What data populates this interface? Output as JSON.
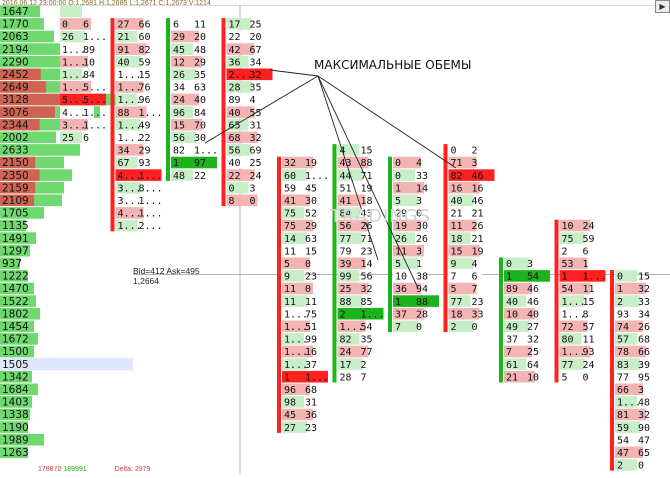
{
  "header": {
    "datetime": "2016.06.12 23:00:00",
    "open": "O:1,2681",
    "high": "H:1,2685",
    "low": "L:1,2671",
    "close": "C:1,2673",
    "volume": "V:1214"
  },
  "annotation": "МАКСИМАЛЬНЫЕ ОБЕМЫ",
  "watermark": "TRADINGS",
  "crosshair_info": {
    "bid_ask": "Bid=412 Ask=495",
    "price": "1,2664"
  },
  "bottom_values": {
    "left": "178870",
    "mid": "189991",
    "right": "Delta: 2979"
  },
  "colors": {
    "profile_green": "#6fd86f",
    "profile_red": "#e05050",
    "max_red": "#ff2020",
    "max_green": "#1db31d",
    "light_green": "#c8eec8",
    "light_red": "#f3b4b4"
  },
  "volume_profile": [
    {
      "label": "1647",
      "level": 0.2,
      "tint": "g"
    },
    {
      "label": "1770",
      "level": 0.22,
      "tint": "g"
    },
    {
      "label": "2063",
      "level": 0.27,
      "tint": "g"
    },
    {
      "label": "2194",
      "level": 0.3,
      "tint": "g"
    },
    {
      "label": "2290",
      "level": 0.32,
      "tint": "g"
    },
    {
      "label": "2452",
      "level": 0.37,
      "tint": "m"
    },
    {
      "label": "2649",
      "level": 0.42,
      "tint": "m"
    },
    {
      "label": "3128",
      "level": 0.6,
      "tint": "m"
    },
    {
      "label": "3076",
      "level": 0.5,
      "tint": "m"
    },
    {
      "label": "2344",
      "level": 0.36,
      "tint": "m"
    },
    {
      "label": "2002",
      "level": 0.28,
      "tint": "g"
    },
    {
      "label": "2633",
      "level": 0.4,
      "tint": "g"
    },
    {
      "label": "2150",
      "level": 0.32,
      "tint": "m"
    },
    {
      "label": "2350",
      "level": 0.36,
      "tint": "m"
    },
    {
      "label": "2159",
      "level": 0.32,
      "tint": "m"
    },
    {
      "label": "2109",
      "level": 0.31,
      "tint": "m"
    },
    {
      "label": "1705",
      "level": 0.22,
      "tint": "g"
    },
    {
      "label": "1135",
      "level": 0.13,
      "tint": "g"
    },
    {
      "label": "1491",
      "level": 0.18,
      "tint": "g"
    },
    {
      "label": "1297",
      "level": 0.15,
      "tint": "g"
    },
    {
      "label": "937",
      "level": 0.1,
      "tint": "g"
    },
    {
      "label": "1222",
      "level": 0.14,
      "tint": "g"
    },
    {
      "label": "1470",
      "level": 0.17,
      "tint": "g"
    },
    {
      "label": "1522",
      "level": 0.18,
      "tint": "g"
    },
    {
      "label": "1802",
      "level": 0.2,
      "tint": "g"
    },
    {
      "label": "1454",
      "level": 0.17,
      "tint": "g"
    },
    {
      "label": "1672",
      "level": 0.19,
      "tint": "g"
    },
    {
      "label": "1500",
      "level": 0.17,
      "tint": "g"
    },
    {
      "label": "1505",
      "level": 0.17,
      "tint": "b"
    },
    {
      "label": "1342",
      "level": 0.16,
      "tint": "g"
    },
    {
      "label": "1684",
      "level": 0.19,
      "tint": "g"
    },
    {
      "label": "1403",
      "level": 0.16,
      "tint": "g"
    },
    {
      "label": "1338",
      "level": 0.15,
      "tint": "g"
    },
    {
      "label": "1190",
      "level": 0.14,
      "tint": "g"
    },
    {
      "label": "1989",
      "level": 0.22,
      "tint": "g"
    },
    {
      "label": "1263",
      "level": 0.14,
      "tint": "g"
    }
  ],
  "clusters": [
    {
      "start_row": 0,
      "candle": "n",
      "rows": [
        [
          "",
          ""
        ],
        [
          "0",
          "6"
        ],
        [
          "26",
          "1..."
        ],
        [
          "1...",
          "89"
        ],
        [
          "1...",
          "10"
        ],
        [
          "1...",
          "84"
        ],
        [
          "1...",
          "5..."
        ],
        [
          "5...",
          "5..."
        ],
        [
          "4...",
          "1..."
        ],
        [
          "3...",
          "1..."
        ],
        [
          "25",
          "6"
        ]
      ],
      "max_row": 7
    },
    {
      "start_row": 1,
      "candle": "bear",
      "rows": [
        [
          "27",
          "66"
        ],
        [
          "21",
          "60"
        ],
        [
          "91",
          "82"
        ],
        [
          "40",
          "59"
        ],
        [
          "1...",
          "15"
        ],
        [
          "1...",
          "76"
        ],
        [
          "1...",
          "96"
        ],
        [
          "88",
          "1..."
        ],
        [
          "1...",
          "49"
        ],
        [
          "1...",
          "22"
        ],
        [
          "34",
          "29"
        ],
        [
          "67",
          "93"
        ],
        [
          "4...",
          "1..."
        ],
        [
          "3...",
          "8..."
        ],
        [
          "3...",
          "1..."
        ],
        [
          "4...",
          "1..."
        ],
        [
          "1...",
          "2..."
        ]
      ],
      "max_row": 12
    },
    {
      "start_row": 1,
      "candle": "bull",
      "rows": [
        [
          "6",
          "11"
        ],
        [
          "29",
          "20"
        ],
        [
          "45",
          "48"
        ],
        [
          "12",
          "29"
        ],
        [
          "26",
          "35"
        ],
        [
          "34",
          "63"
        ],
        [
          "24",
          "40"
        ],
        [
          "96",
          "84"
        ],
        [
          "15",
          "70"
        ],
        [
          "56",
          "30"
        ],
        [
          "82",
          "1..."
        ],
        [
          "1",
          "97"
        ],
        [
          "48",
          "22"
        ]
      ],
      "max_row": 11
    },
    {
      "start_row": 1,
      "candle": "bear",
      "rows": [
        [
          "17",
          "25"
        ],
        [
          "22",
          "20"
        ],
        [
          "42",
          "67"
        ],
        [
          "36",
          "34"
        ],
        [
          "2...",
          "32"
        ],
        [
          "28",
          "35"
        ],
        [
          "89",
          "4"
        ],
        [
          "40",
          "55"
        ],
        [
          "65",
          "31"
        ],
        [
          "68",
          "32"
        ],
        [
          "56",
          "69"
        ],
        [
          "40",
          "25"
        ],
        [
          "22",
          "24"
        ],
        [
          "0",
          "3"
        ],
        [
          "8",
          "0"
        ]
      ],
      "max_row": 4
    },
    {
      "start_row": 12,
      "candle": "bear",
      "rows": [
        [
          "32",
          "19"
        ],
        [
          "60",
          "1..."
        ],
        [
          "59",
          "45"
        ],
        [
          "41",
          "30"
        ],
        [
          "75",
          "52"
        ],
        [
          "75",
          "29"
        ],
        [
          "14",
          "63"
        ],
        [
          "11",
          "15"
        ],
        [
          "5",
          "0"
        ],
        [
          "9",
          "23"
        ],
        [
          "11",
          "0"
        ],
        [
          "11",
          "11"
        ],
        [
          "1...",
          "75"
        ],
        [
          "1...",
          "51"
        ],
        [
          "1...",
          "99"
        ],
        [
          "1...",
          "16"
        ],
        [
          "1...",
          "37"
        ],
        [
          "1",
          "1..."
        ],
        [
          "96",
          "68"
        ],
        [
          "98",
          "31"
        ],
        [
          "45",
          "36"
        ],
        [
          "27",
          "23"
        ]
      ],
      "max_row": 17
    },
    {
      "start_row": 11,
      "candle": "bull",
      "rows": [
        [
          "4",
          "15"
        ],
        [
          "43",
          "88"
        ],
        [
          "44",
          "71"
        ],
        [
          "51",
          "19"
        ],
        [
          "41",
          "18"
        ],
        [
          "84",
          "43"
        ],
        [
          "56",
          "26"
        ],
        [
          "77",
          "71"
        ],
        [
          "79",
          "23"
        ],
        [
          "39",
          "14"
        ],
        [
          "99",
          "56"
        ],
        [
          "25",
          "32"
        ],
        [
          "88",
          "85"
        ],
        [
          "2",
          "1..."
        ],
        [
          "1...",
          "54"
        ],
        [
          "82",
          "35"
        ],
        [
          "24",
          "77"
        ],
        [
          "17",
          "2"
        ],
        [
          "28",
          "7"
        ]
      ],
      "max_row": 13
    },
    {
      "start_row": 12,
      "candle": "bull",
      "rows": [
        [
          "0",
          "4"
        ],
        [
          "0",
          "33"
        ],
        [
          "1",
          "14"
        ],
        [
          "5",
          "3"
        ],
        [
          "29",
          "0"
        ],
        [
          "19",
          "30"
        ],
        [
          "26",
          "26"
        ],
        [
          "11",
          "3"
        ],
        [
          "5",
          "1"
        ],
        [
          "10",
          "38"
        ],
        [
          "36",
          "94"
        ],
        [
          "1",
          "88"
        ],
        [
          "37",
          "28"
        ],
        [
          "7",
          "0"
        ]
      ],
      "max_row": 11
    },
    {
      "start_row": 11,
      "candle": "bear",
      "rows": [
        [
          "0",
          "2"
        ],
        [
          "71",
          "3"
        ],
        [
          "82",
          "46"
        ],
        [
          "16",
          "16"
        ],
        [
          "40",
          "46"
        ],
        [
          "21",
          "21"
        ],
        [
          "11",
          "26"
        ],
        [
          "18",
          "21"
        ],
        [
          "15",
          "19"
        ],
        [
          "9",
          "4"
        ],
        [
          "7",
          "6"
        ],
        [
          "5",
          "7"
        ],
        [
          "77",
          "23"
        ],
        [
          "18",
          "33"
        ],
        [
          "2",
          "0"
        ]
      ],
      "max_row": 2
    },
    {
      "start_row": 20,
      "candle": "bull",
      "rows": [
        [
          "0",
          "3"
        ],
        [
          "1",
          "54"
        ],
        [
          "89",
          "46"
        ],
        [
          "40",
          "46"
        ],
        [
          "10",
          "40"
        ],
        [
          "49",
          "27"
        ],
        [
          "37",
          "32"
        ],
        [
          "7",
          "25"
        ],
        [
          "61",
          "64"
        ],
        [
          "21",
          "10"
        ]
      ],
      "max_row": 1
    },
    {
      "start_row": 17,
      "candle": "bear",
      "rows": [
        [
          "10",
          "24"
        ],
        [
          "75",
          "59"
        ],
        [
          "2",
          "6"
        ],
        [
          "53",
          "1"
        ],
        [
          "1",
          "1..."
        ],
        [
          "54",
          "11"
        ],
        [
          "1...",
          "15"
        ],
        [
          "1...",
          "8"
        ],
        [
          "72",
          "57"
        ],
        [
          "80",
          "11"
        ],
        [
          "1...",
          "93"
        ],
        [
          "77",
          "24"
        ],
        [
          "5",
          "0"
        ]
      ],
      "max_row": 4
    },
    {
      "start_row": 21,
      "candle": "bear",
      "rows": [
        [
          "0",
          "15"
        ],
        [
          "1",
          "32"
        ],
        [
          "2",
          "33"
        ],
        [
          "93",
          "34"
        ],
        [
          "74",
          "26"
        ],
        [
          "57",
          "68"
        ],
        [
          "78",
          "66"
        ],
        [
          "83",
          "39"
        ],
        [
          "77",
          "95"
        ],
        [
          "66",
          "3"
        ],
        [
          "1...",
          "48"
        ],
        [
          "81",
          "32"
        ],
        [
          "59",
          "90"
        ],
        [
          "54",
          "47"
        ],
        [
          "47",
          "65"
        ],
        [
          "2",
          "0"
        ]
      ],
      "max_row": -1
    }
  ]
}
